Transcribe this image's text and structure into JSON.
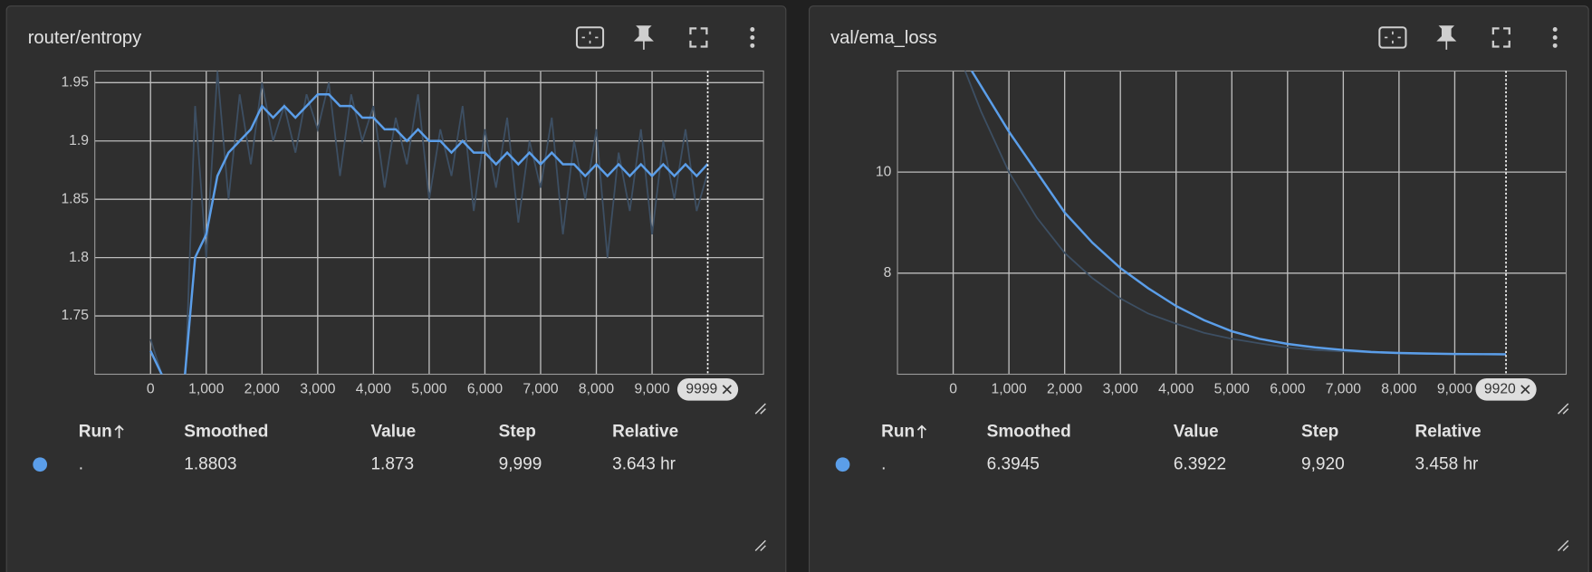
{
  "chart_data": [
    {
      "type": "line",
      "title": "router/entropy",
      "x": [
        0,
        200,
        400,
        600,
        800,
        1000,
        1200,
        1400,
        1600,
        1800,
        2000,
        2200,
        2400,
        2600,
        2800,
        3000,
        3200,
        3400,
        3600,
        3800,
        4000,
        4200,
        4400,
        4600,
        4800,
        5000,
        5200,
        5400,
        5600,
        5800,
        6000,
        6200,
        6400,
        6600,
        6800,
        7000,
        7200,
        7400,
        7600,
        7800,
        8000,
        8200,
        8400,
        8600,
        8800,
        9000,
        9200,
        9400,
        9600,
        9800,
        9999
      ],
      "series": [
        {
          "color": "#3d4f63",
          "values": [
            1.73,
            1.7,
            1.68,
            1.66,
            1.93,
            1.8,
            1.96,
            1.85,
            1.94,
            1.88,
            1.95,
            1.9,
            1.93,
            1.89,
            1.94,
            1.91,
            1.95,
            1.87,
            1.94,
            1.9,
            1.93,
            1.86,
            1.92,
            1.88,
            1.94,
            1.85,
            1.91,
            1.87,
            1.93,
            1.84,
            1.91,
            1.86,
            1.92,
            1.83,
            1.9,
            1.86,
            1.92,
            1.82,
            1.9,
            1.85,
            1.91,
            1.8,
            1.89,
            1.84,
            1.91,
            1.82,
            1.9,
            1.85,
            1.91,
            1.84,
            1.873
          ]
        },
        {
          "color": "#5b9ee9",
          "values": [
            1.72,
            1.7,
            1.69,
            1.69,
            1.8,
            1.82,
            1.87,
            1.89,
            1.9,
            1.91,
            1.93,
            1.92,
            1.93,
            1.92,
            1.93,
            1.94,
            1.94,
            1.93,
            1.93,
            1.92,
            1.92,
            1.91,
            1.91,
            1.9,
            1.91,
            1.9,
            1.9,
            1.89,
            1.9,
            1.89,
            1.89,
            1.88,
            1.89,
            1.88,
            1.89,
            1.88,
            1.89,
            1.88,
            1.88,
            1.87,
            1.88,
            1.87,
            1.88,
            1.87,
            1.88,
            1.87,
            1.88,
            1.87,
            1.88,
            1.87,
            1.8803
          ]
        }
      ],
      "xlim": [
        -1000,
        11000
      ],
      "ylim": [
        1.7,
        1.96
      ],
      "xticks": [
        0,
        {
          "value": 1000,
          "label": "1,000"
        },
        {
          "value": 2000,
          "label": "2,000"
        },
        {
          "value": 3000,
          "label": "3,000"
        },
        {
          "value": 4000,
          "label": "4,000"
        },
        {
          "value": 5000,
          "label": "5,000"
        },
        {
          "value": 6000,
          "label": "6,000"
        },
        {
          "value": 7000,
          "label": "7,000"
        },
        {
          "value": 8000,
          "label": "8,000"
        },
        {
          "value": 9000,
          "label": "9,000"
        }
      ],
      "yticks": [
        1.75,
        1.8,
        1.85,
        1.9,
        1.95
      ],
      "grid": true,
      "marker_step": 9999,
      "table": {
        "columns": [
          "Run",
          "Smoothed",
          "Value",
          "Step",
          "Relative"
        ],
        "rows": [
          [
            ".",
            "1.8803",
            "1.873",
            "9,999",
            "3.643 hr"
          ]
        ]
      }
    },
    {
      "type": "line",
      "title": "val/ema_loss",
      "x": [
        0,
        500,
        1000,
        1500,
        2000,
        2500,
        3000,
        3500,
        4000,
        4500,
        5000,
        5500,
        6000,
        6500,
        7000,
        7500,
        8000,
        8500,
        9000,
        9500,
        9920
      ],
      "series": [
        {
          "color": "#3d4f63",
          "values": [
            12.6,
            11.2,
            10.0,
            9.1,
            8.4,
            7.9,
            7.5,
            7.2,
            7.0,
            6.82,
            6.7,
            6.61,
            6.53,
            6.48,
            6.45,
            6.43,
            6.41,
            6.4,
            6.4,
            6.395,
            6.3922
          ]
        },
        {
          "color": "#5b9ee9",
          "values": [
            12.6,
            11.7,
            10.8,
            10.0,
            9.2,
            8.6,
            8.1,
            7.7,
            7.35,
            7.07,
            6.85,
            6.7,
            6.6,
            6.53,
            6.48,
            6.44,
            6.42,
            6.41,
            6.4,
            6.397,
            6.3945
          ]
        }
      ],
      "xlim": [
        -1000,
        11000
      ],
      "ylim": [
        6,
        12
      ],
      "xticks": [
        0,
        {
          "value": 1000,
          "label": "1,000"
        },
        {
          "value": 2000,
          "label": "2,000"
        },
        {
          "value": 3000,
          "label": "3,000"
        },
        {
          "value": 4000,
          "label": "4,000"
        },
        {
          "value": 5000,
          "label": "5,000"
        },
        {
          "value": 6000,
          "label": "6,000"
        },
        {
          "value": 7000,
          "label": "7,000"
        },
        {
          "value": 8000,
          "label": "8,000"
        },
        {
          "value": 9000,
          "label": "9,000"
        }
      ],
      "yticks": [
        8,
        10
      ],
      "grid": true,
      "marker_step": 9920,
      "table": {
        "columns": [
          "Run",
          "Smoothed",
          "Value",
          "Step",
          "Relative"
        ],
        "rows": [
          [
            ".",
            "6.3945",
            "6.3922",
            "9,920",
            "3.458 hr"
          ]
        ]
      }
    }
  ]
}
